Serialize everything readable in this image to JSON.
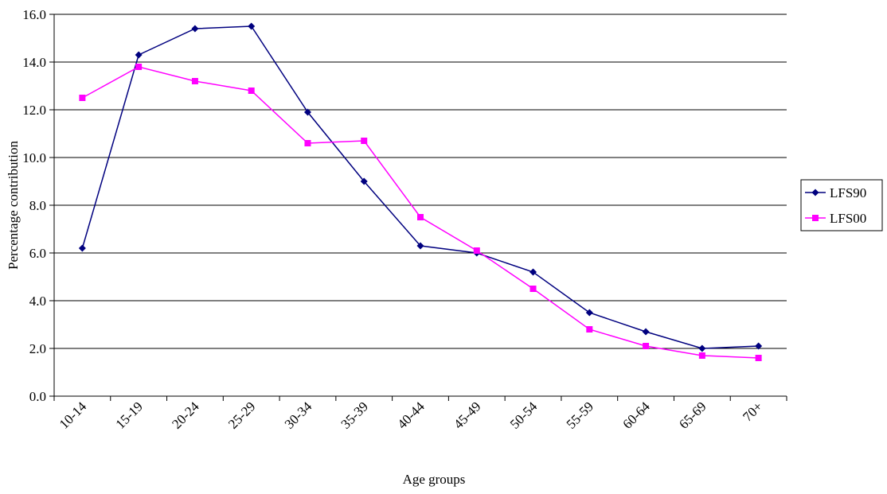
{
  "chart_data": {
    "type": "line",
    "title": "",
    "xlabel": "Age groups",
    "ylabel": "Percentage contribution",
    "categories": [
      "10-14",
      "15-19",
      "20-24",
      "25-29",
      "30-34",
      "35-39",
      "40-44",
      "45-49",
      "50-54",
      "55-59",
      "60-64",
      "65-69",
      "70+"
    ],
    "ylim": [
      0,
      16
    ],
    "yticks": [
      "0.0",
      "2.0",
      "4.0",
      "6.0",
      "8.0",
      "10.0",
      "12.0",
      "14.0",
      "16.0"
    ],
    "grid": true,
    "legend_position": "right",
    "series": [
      {
        "name": "LFS90",
        "color": "#00007F",
        "marker": "diamond",
        "values": [
          6.2,
          14.3,
          15.4,
          15.5,
          11.9,
          9.0,
          6.3,
          6.0,
          5.2,
          3.5,
          2.7,
          2.0,
          2.1
        ]
      },
      {
        "name": "LFS00",
        "color": "#FF00FF",
        "marker": "square",
        "values": [
          12.5,
          13.8,
          13.2,
          12.8,
          10.6,
          10.7,
          7.5,
          6.1,
          4.5,
          2.8,
          2.1,
          1.7,
          1.6
        ]
      }
    ]
  }
}
